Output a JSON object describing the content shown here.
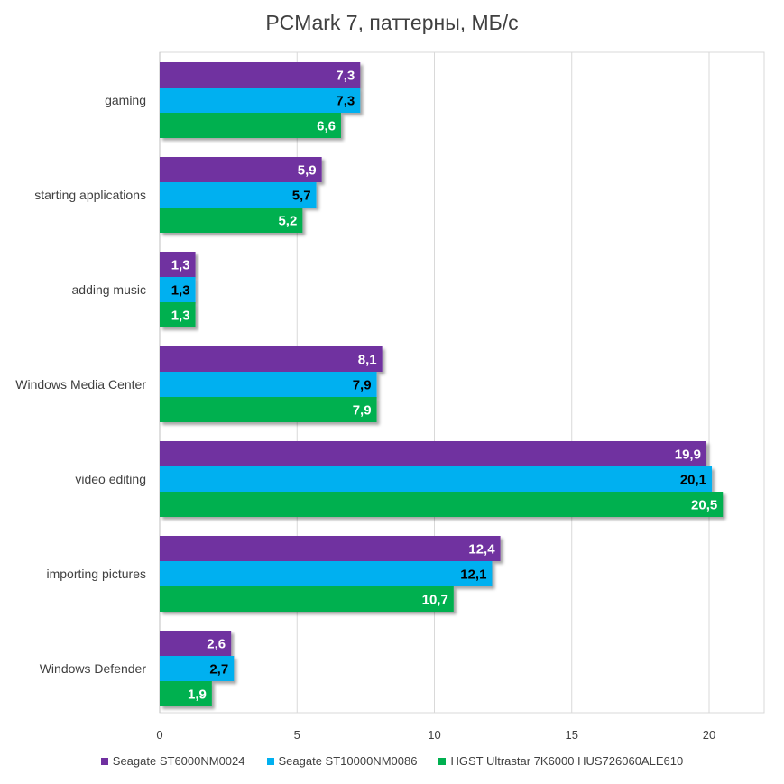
{
  "chart_data": {
    "type": "bar",
    "orientation": "horizontal",
    "title": "PCMark 7, паттерны, МБ/с",
    "xlabel": "",
    "ylabel": "",
    "xlim": [
      0,
      22
    ],
    "ticks": [
      0,
      5,
      10,
      15,
      20
    ],
    "grid": true,
    "legend_position": "bottom",
    "categories": [
      "gaming",
      "starting applications",
      "adding music",
      "Windows Media Center",
      "video editing",
      "importing pictures",
      "Windows Defender"
    ],
    "series": [
      {
        "name": "Seagate ST6000NM0024",
        "color": "#7030a0",
        "label_color": "#ffffff",
        "values": [
          7.3,
          5.9,
          1.3,
          8.1,
          19.9,
          12.4,
          2.6
        ],
        "labels": [
          "7,3",
          "5,9",
          "1,3",
          "8,1",
          "19,9",
          "12,4",
          "2,6"
        ]
      },
      {
        "name": "Seagate ST10000NM0086",
        "color": "#00b0f0",
        "label_color": "#000000",
        "values": [
          7.3,
          5.7,
          1.3,
          7.9,
          20.1,
          12.1,
          2.7
        ],
        "labels": [
          "7,3",
          "5,7",
          "1,3",
          "7,9",
          "20,1",
          "12,1",
          "2,7"
        ]
      },
      {
        "name": "HGST Ultrastar 7K6000 HUS726060ALE610",
        "color": "#00b050",
        "label_color": "#ffffff",
        "values": [
          6.6,
          5.2,
          1.3,
          7.9,
          20.5,
          10.7,
          1.9
        ],
        "labels": [
          "6,6",
          "5,2",
          "1,3",
          "7,9",
          "20,5",
          "10,7",
          "1,9"
        ]
      }
    ]
  }
}
